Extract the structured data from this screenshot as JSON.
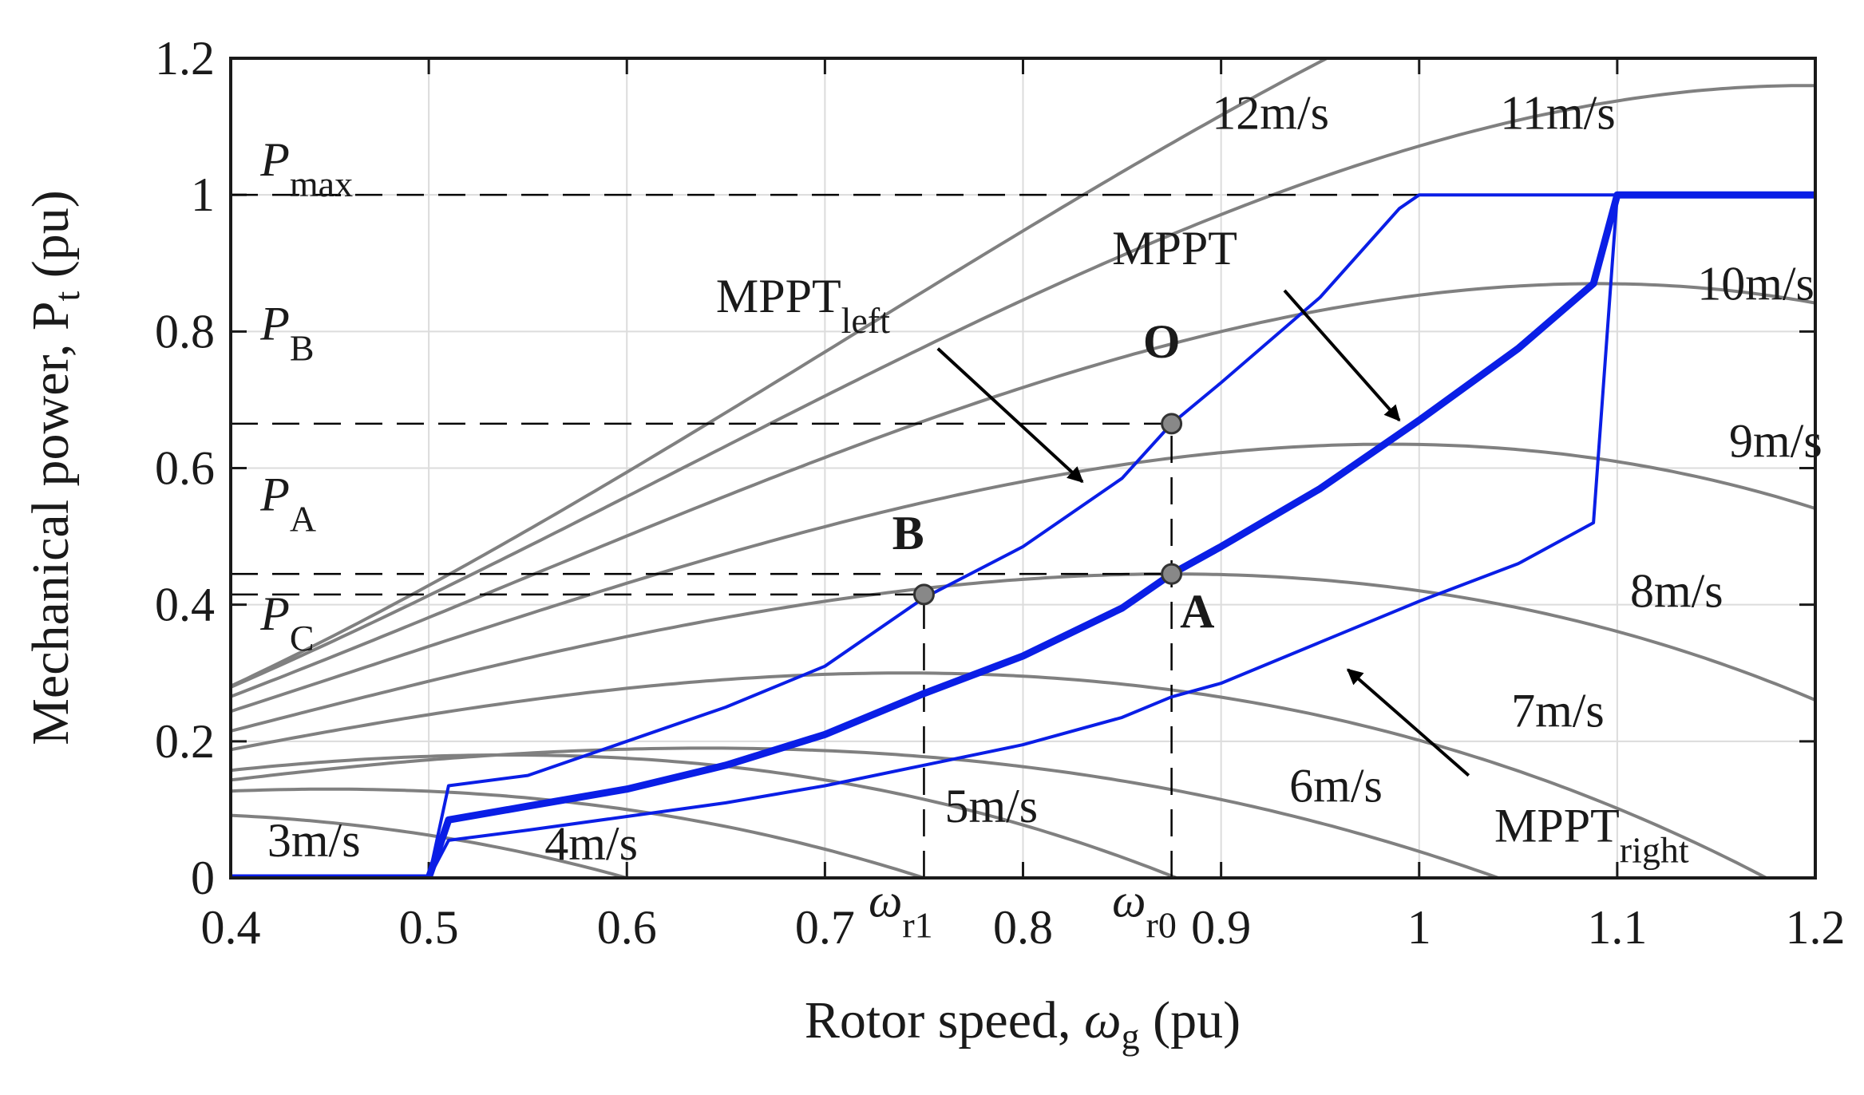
{
  "chart_data": {
    "type": "line",
    "title": "",
    "xlabel": {
      "main": "Rotor speed, ",
      "symbol": "ω",
      "sub": "g",
      "unit": " (pu)"
    },
    "ylabel": {
      "main": "Mechanical power, P",
      "sub": "t",
      "unit": " (pu)"
    },
    "xlim": [
      0.4,
      1.2
    ],
    "ylim": [
      0,
      1.2
    ],
    "grid": true,
    "xticks": [
      0.4,
      0.5,
      0.6,
      0.7,
      0.8,
      0.9,
      1.0,
      1.1,
      1.2
    ],
    "xtick_labels": [
      "0.4",
      "0.5",
      "0.6",
      "0.7",
      "0.8",
      "0.9",
      "1",
      "1.1",
      "1.2"
    ],
    "yticks": [
      0,
      0.2,
      0.4,
      0.6,
      0.8,
      1.0,
      1.2
    ],
    "ytick_labels": [
      "0",
      "0.2",
      "0.4",
      "0.6",
      "0.8",
      "1",
      "1.2"
    ],
    "colors": {
      "wind_curve": "#808080",
      "mppt": "#0a1ee6",
      "reference": "#000000",
      "marker_fill": "#888888"
    },
    "wind_curves": [
      {
        "name": "3m/s",
        "label": "3m/s",
        "peak_x": 0.35,
        "peak_y": 0.095,
        "k": 1.4,
        "label_at": [
          0.442,
          0.055
        ]
      },
      {
        "name": "4m/s",
        "label": "4m/s",
        "peak_x": 0.45,
        "peak_y": 0.13,
        "k": 1.5,
        "label_at": [
          0.582,
          0.05
        ]
      },
      {
        "name": "5m/s",
        "label": "5m/s",
        "peak_x": 0.54,
        "peak_y": 0.18,
        "k": 1.6,
        "label_at": [
          0.784,
          0.105
        ]
      },
      {
        "name": "6m/s",
        "label": "6m/s",
        "peak_x": 0.64,
        "peak_y": 0.19,
        "k": 1.6,
        "label_at": [
          0.958,
          0.135
        ]
      },
      {
        "name": "7m/s",
        "label": "7m/s",
        "peak_x": 0.74,
        "peak_y": 0.3,
        "k": 1.7,
        "label_at": [
          1.07,
          0.245
        ]
      },
      {
        "name": "8m/s",
        "label": "8m/s",
        "peak_x": 0.875,
        "peak_y": 0.445,
        "k": 1.8,
        "label_at": [
          1.13,
          0.42
        ]
      },
      {
        "name": "9m/s",
        "label": "9m/s",
        "peak_x": 0.985,
        "peak_y": 0.635,
        "k": 1.9,
        "label_at": [
          1.18,
          0.64
        ]
      },
      {
        "name": "10m/s",
        "label": "10m/s",
        "peak_x": 1.09,
        "peak_y": 0.87,
        "k": 2.0,
        "label_at": [
          1.17,
          0.87
        ]
      },
      {
        "name": "11m/s",
        "label": "11m/s",
        "peak_x": 1.195,
        "peak_y": 1.16,
        "k": 2.1,
        "label_at": [
          1.07,
          1.12
        ]
      },
      {
        "name": "12m/s",
        "label": "12m/s",
        "peak_x": 1.31,
        "peak_y": 1.51,
        "k": 2.2,
        "label_at": [
          0.925,
          1.12
        ]
      }
    ],
    "series": [
      {
        "name": "MPPT",
        "width": "thick",
        "x": [
          0.4,
          0.5,
          0.51,
          0.55,
          0.6,
          0.65,
          0.7,
          0.75,
          0.8,
          0.85,
          0.875,
          0.9,
          0.95,
          1.0,
          1.05,
          1.088,
          1.1,
          1.2
        ],
        "y": [
          0,
          0,
          0.085,
          0.105,
          0.13,
          0.165,
          0.21,
          0.27,
          0.325,
          0.395,
          0.445,
          0.485,
          0.57,
          0.67,
          0.775,
          0.87,
          1.0,
          1.0
        ]
      },
      {
        "name": "MPPT_left",
        "width": "thin",
        "x": [
          0.4,
          0.5,
          0.51,
          0.55,
          0.6,
          0.65,
          0.7,
          0.75,
          0.8,
          0.85,
          0.875,
          0.9,
          0.95,
          0.99,
          1.0,
          1.2
        ],
        "y": [
          0,
          0,
          0.135,
          0.15,
          0.2,
          0.25,
          0.31,
          0.41,
          0.485,
          0.585,
          0.665,
          0.725,
          0.85,
          0.98,
          1.0,
          1.0
        ]
      },
      {
        "name": "MPPT_right",
        "width": "thin",
        "x": [
          0.4,
          0.5,
          0.51,
          0.55,
          0.6,
          0.65,
          0.7,
          0.75,
          0.8,
          0.85,
          0.875,
          0.9,
          0.95,
          1.0,
          1.05,
          1.088,
          1.1,
          1.2
        ],
        "y": [
          0,
          0,
          0.055,
          0.07,
          0.09,
          0.11,
          0.135,
          0.165,
          0.195,
          0.235,
          0.265,
          0.285,
          0.345,
          0.405,
          0.46,
          0.52,
          1.0,
          1.0
        ]
      }
    ],
    "reference_lines": [
      {
        "name": "P_max",
        "type": "h",
        "y": 1.0,
        "x0": 0.4,
        "x1": 1.2
      },
      {
        "name": "P_B",
        "type": "h",
        "y": 0.665,
        "x0": 0.4,
        "x1": 0.875
      },
      {
        "name": "P_A",
        "type": "h",
        "y": 0.445,
        "x0": 0.4,
        "x1": 0.875
      },
      {
        "name": "P_C",
        "type": "h",
        "y": 0.415,
        "x0": 0.4,
        "x1": 0.75
      },
      {
        "name": "omega_r1",
        "type": "v",
        "x": 0.75,
        "y0": 0,
        "y1": 0.415
      },
      {
        "name": "omega_r0",
        "type": "v",
        "x": 0.875,
        "y0": 0,
        "y1": 0.665
      }
    ],
    "points": [
      {
        "name": "O",
        "label": "O",
        "x": 0.875,
        "y": 0.665,
        "label_at": [
          0.87,
          0.785
        ]
      },
      {
        "name": "B",
        "label": "B",
        "x": 0.75,
        "y": 0.415,
        "label_at": [
          0.742,
          0.505
        ]
      },
      {
        "name": "A",
        "label": "A",
        "x": 0.875,
        "y": 0.445,
        "label_at": [
          0.888,
          0.39
        ]
      }
    ],
    "power_labels": [
      {
        "name": "P-max",
        "main": "P",
        "sub": "max",
        "at": [
          0.415,
          1.04
        ]
      },
      {
        "name": "P-B",
        "main": "P",
        "sub": "B",
        "at": [
          0.415,
          0.8
        ]
      },
      {
        "name": "P-A",
        "main": "P",
        "sub": "A",
        "at": [
          0.415,
          0.55
        ]
      },
      {
        "name": "P-C",
        "main": "P",
        "sub": "C",
        "at": [
          0.415,
          0.375
        ]
      }
    ],
    "omega_labels": [
      {
        "name": "omega-r1",
        "main": "ω",
        "sub": "r1",
        "at": [
          0.722,
          -0.045
        ]
      },
      {
        "name": "omega-r0",
        "main": "ω",
        "sub": "r0",
        "at": [
          0.845,
          -0.045
        ]
      }
    ],
    "annotations": [
      {
        "name": "mppt-left-annotation",
        "main": "MPPT",
        "sub": "left",
        "at": [
          0.645,
          0.84
        ],
        "arrow_from": [
          0.757,
          0.775
        ],
        "arrow_to": [
          0.83,
          0.58
        ]
      },
      {
        "name": "mppt-annotation",
        "main": "MPPT",
        "sub": "",
        "at": [
          0.845,
          0.91
        ],
        "arrow_from": [
          0.932,
          0.86
        ],
        "arrow_to": [
          0.99,
          0.67
        ]
      },
      {
        "name": "mppt-right-annotation",
        "main": "MPPT",
        "sub": "right",
        "at": [
          1.038,
          0.065
        ],
        "arrow_from": [
          1.025,
          0.15
        ],
        "arrow_to": [
          0.964,
          0.305
        ]
      }
    ]
  }
}
